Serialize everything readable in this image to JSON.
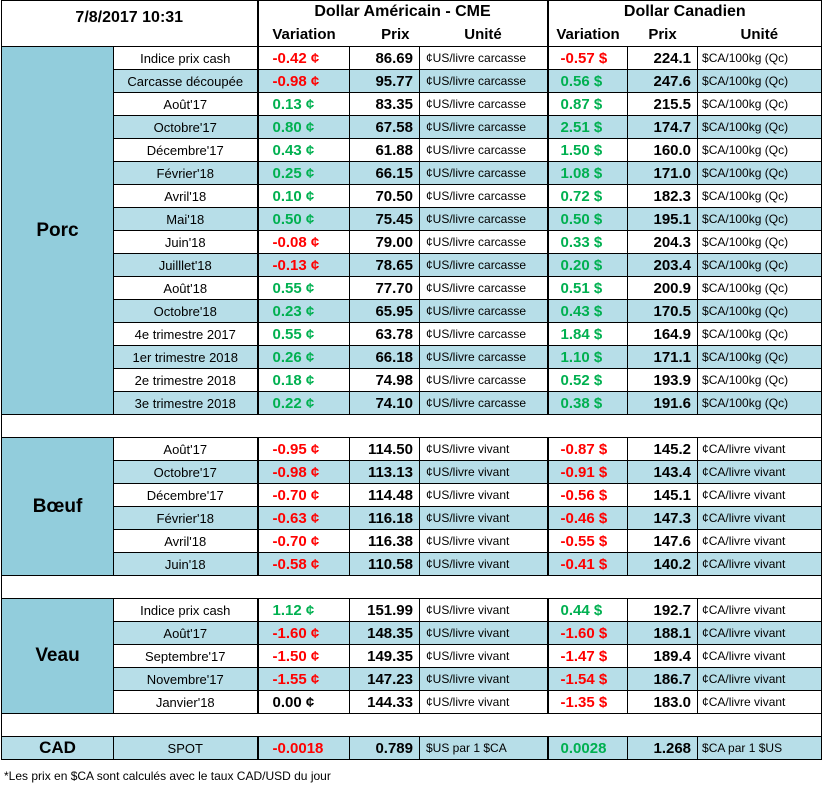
{
  "header": {
    "datetime": "7/8/2017 10:31",
    "usd_title": "Dollar Américain - CME",
    "cad_title": "Dollar Canadien",
    "col_variation": "Variation",
    "col_prix": "Prix",
    "col_unite": "Unité"
  },
  "colors": {
    "red": "#ff0000",
    "green": "#00b050",
    "light_blue": "#b7dee8",
    "group_blue": "#92cddc"
  },
  "porc": {
    "label": "Porc",
    "rows": [
      {
        "name": "Indice prix cash",
        "usd_var": "-0.42 ¢",
        "usd_var_color": "red",
        "usd_prix": "86.69",
        "usd_unit": "¢US/livre carcasse",
        "cad_var": "-0.57 $",
        "cad_var_color": "red",
        "cad_prix": "224.1",
        "cad_unit": "$CA/100kg (Qc)"
      },
      {
        "name": "Carcasse découpée",
        "usd_var": "-0.98 ¢",
        "usd_var_color": "red",
        "usd_prix": "95.77",
        "usd_unit": "¢US/livre carcasse",
        "cad_var": "0.56 $",
        "cad_var_color": "green",
        "cad_prix": "247.6",
        "cad_unit": "$CA/100kg (Qc)"
      },
      {
        "name": "Août'17",
        "usd_var": "0.13 ¢",
        "usd_var_color": "green",
        "usd_prix": "83.35",
        "usd_unit": "¢US/livre carcasse",
        "cad_var": "0.87 $",
        "cad_var_color": "green",
        "cad_prix": "215.5",
        "cad_unit": "$CA/100kg (Qc)"
      },
      {
        "name": "Octobre'17",
        "usd_var": "0.80 ¢",
        "usd_var_color": "green",
        "usd_prix": "67.58",
        "usd_unit": "¢US/livre carcasse",
        "cad_var": "2.51 $",
        "cad_var_color": "green",
        "cad_prix": "174.7",
        "cad_unit": "$CA/100kg (Qc)"
      },
      {
        "name": "Décembre'17",
        "usd_var": "0.43 ¢",
        "usd_var_color": "green",
        "usd_prix": "61.88",
        "usd_unit": "¢US/livre carcasse",
        "cad_var": "1.50 $",
        "cad_var_color": "green",
        "cad_prix": "160.0",
        "cad_unit": "$CA/100kg (Qc)"
      },
      {
        "name": "Février'18",
        "usd_var": "0.25 ¢",
        "usd_var_color": "green",
        "usd_prix": "66.15",
        "usd_unit": "¢US/livre carcasse",
        "cad_var": "1.08 $",
        "cad_var_color": "green",
        "cad_prix": "171.0",
        "cad_unit": "$CA/100kg (Qc)"
      },
      {
        "name": "Avril'18",
        "usd_var": "0.10 ¢",
        "usd_var_color": "green",
        "usd_prix": "70.50",
        "usd_unit": "¢US/livre carcasse",
        "cad_var": "0.72 $",
        "cad_var_color": "green",
        "cad_prix": "182.3",
        "cad_unit": "$CA/100kg (Qc)"
      },
      {
        "name": "Mai'18",
        "usd_var": "0.50 ¢",
        "usd_var_color": "green",
        "usd_prix": "75.45",
        "usd_unit": "¢US/livre carcasse",
        "cad_var": "0.50 $",
        "cad_var_color": "green",
        "cad_prix": "195.1",
        "cad_unit": "$CA/100kg (Qc)"
      },
      {
        "name": "Juin'18",
        "usd_var": "-0.08 ¢",
        "usd_var_color": "red",
        "usd_prix": "79.00",
        "usd_unit": "¢US/livre carcasse",
        "cad_var": "0.33 $",
        "cad_var_color": "green",
        "cad_prix": "204.3",
        "cad_unit": "$CA/100kg (Qc)"
      },
      {
        "name": "Juilllet'18",
        "usd_var": "-0.13 ¢",
        "usd_var_color": "red",
        "usd_prix": "78.65",
        "usd_unit": "¢US/livre carcasse",
        "cad_var": "0.20 $",
        "cad_var_color": "green",
        "cad_prix": "203.4",
        "cad_unit": "$CA/100kg (Qc)"
      },
      {
        "name": "Août'18",
        "usd_var": "0.55 ¢",
        "usd_var_color": "green",
        "usd_prix": "77.70",
        "usd_unit": "¢US/livre carcasse",
        "cad_var": "0.51 $",
        "cad_var_color": "green",
        "cad_prix": "200.9",
        "cad_unit": "$CA/100kg (Qc)"
      },
      {
        "name": "Octobre'18",
        "usd_var": "0.23 ¢",
        "usd_var_color": "green",
        "usd_prix": "65.95",
        "usd_unit": "¢US/livre carcasse",
        "cad_var": "0.43 $",
        "cad_var_color": "green",
        "cad_prix": "170.5",
        "cad_unit": "$CA/100kg (Qc)"
      },
      {
        "name": "4e trimestre 2017",
        "usd_var": "0.55 ¢",
        "usd_var_color": "green",
        "usd_prix": "63.78",
        "usd_unit": "¢US/livre carcasse",
        "cad_var": "1.84 $",
        "cad_var_color": "green",
        "cad_prix": "164.9",
        "cad_unit": "$CA/100kg (Qc)"
      },
      {
        "name": "1er trimestre 2018",
        "usd_var": "0.26 ¢",
        "usd_var_color": "green",
        "usd_prix": "66.18",
        "usd_unit": "¢US/livre carcasse",
        "cad_var": "1.10 $",
        "cad_var_color": "green",
        "cad_prix": "171.1",
        "cad_unit": "$CA/100kg (Qc)"
      },
      {
        "name": "2e trimestre 2018",
        "usd_var": "0.18 ¢",
        "usd_var_color": "green",
        "usd_prix": "74.98",
        "usd_unit": "¢US/livre carcasse",
        "cad_var": "0.52 $",
        "cad_var_color": "green",
        "cad_prix": "193.9",
        "cad_unit": "$CA/100kg (Qc)"
      },
      {
        "name": "3e trimestre 2018",
        "usd_var": "0.22 ¢",
        "usd_var_color": "green",
        "usd_prix": "74.10",
        "usd_unit": "¢US/livre carcasse",
        "cad_var": "0.38 $",
        "cad_var_color": "green",
        "cad_prix": "191.6",
        "cad_unit": "$CA/100kg (Qc)"
      }
    ]
  },
  "boeuf": {
    "label": "Bœuf",
    "rows": [
      {
        "name": "Août'17",
        "usd_var": "-0.95 ¢",
        "usd_var_color": "red",
        "usd_prix": "114.50",
        "usd_unit": "¢US/livre vivant",
        "cad_var": "-0.87 $",
        "cad_var_color": "red",
        "cad_prix": "145.2",
        "cad_unit": "¢CA/livre vivant"
      },
      {
        "name": "Octobre'17",
        "usd_var": "-0.98 ¢",
        "usd_var_color": "red",
        "usd_prix": "113.13",
        "usd_unit": "¢US/livre vivant",
        "cad_var": "-0.91 $",
        "cad_var_color": "red",
        "cad_prix": "143.4",
        "cad_unit": "¢CA/livre vivant"
      },
      {
        "name": "Décembre'17",
        "usd_var": "-0.70 ¢",
        "usd_var_color": "red",
        "usd_prix": "114.48",
        "usd_unit": "¢US/livre vivant",
        "cad_var": "-0.56 $",
        "cad_var_color": "red",
        "cad_prix": "145.1",
        "cad_unit": "¢CA/livre vivant"
      },
      {
        "name": "Février'18",
        "usd_var": "-0.63 ¢",
        "usd_var_color": "red",
        "usd_prix": "116.18",
        "usd_unit": "¢US/livre vivant",
        "cad_var": "-0.46 $",
        "cad_var_color": "red",
        "cad_prix": "147.3",
        "cad_unit": "¢CA/livre vivant"
      },
      {
        "name": "Avril'18",
        "usd_var": "-0.70 ¢",
        "usd_var_color": "red",
        "usd_prix": "116.38",
        "usd_unit": "¢US/livre vivant",
        "cad_var": "-0.55 $",
        "cad_var_color": "red",
        "cad_prix": "147.6",
        "cad_unit": "¢CA/livre vivant"
      },
      {
        "name": "Juin'18",
        "usd_var": "-0.58 ¢",
        "usd_var_color": "red",
        "usd_prix": "110.58",
        "usd_unit": "¢US/livre vivant",
        "cad_var": "-0.41 $",
        "cad_var_color": "red",
        "cad_prix": "140.2",
        "cad_unit": "¢CA/livre vivant"
      }
    ]
  },
  "veau": {
    "label": "Veau",
    "rows": [
      {
        "name": "Indice prix cash",
        "usd_var": "1.12 ¢",
        "usd_var_color": "green",
        "usd_prix": "151.99",
        "usd_unit": "¢US/livre vivant",
        "cad_var": "0.44 $",
        "cad_var_color": "green",
        "cad_prix": "192.7",
        "cad_unit": "¢CA/livre vivant"
      },
      {
        "name": "Août'17",
        "usd_var": "-1.60 ¢",
        "usd_var_color": "red",
        "usd_prix": "148.35",
        "usd_unit": "¢US/livre vivant",
        "cad_var": "-1.60 $",
        "cad_var_color": "red",
        "cad_prix": "188.1",
        "cad_unit": "¢CA/livre vivant"
      },
      {
        "name": "Septembre'17",
        "usd_var": "-1.50 ¢",
        "usd_var_color": "red",
        "usd_prix": "149.35",
        "usd_unit": "¢US/livre vivant",
        "cad_var": "-1.47 $",
        "cad_var_color": "red",
        "cad_prix": "189.4",
        "cad_unit": "¢CA/livre vivant"
      },
      {
        "name": "Novembre'17",
        "usd_var": "-1.55 ¢",
        "usd_var_color": "red",
        "usd_prix": "147.23",
        "usd_unit": "¢US/livre vivant",
        "cad_var": "-1.54 $",
        "cad_var_color": "red",
        "cad_prix": "186.7",
        "cad_unit": "¢CA/livre vivant"
      },
      {
        "name": "Janvier'18",
        "usd_var": "0.00 ¢",
        "usd_var_color": "black",
        "usd_prix": "144.33",
        "usd_unit": "¢US/livre vivant",
        "cad_var": "-1.35 $",
        "cad_var_color": "red",
        "cad_prix": "183.0",
        "cad_unit": "¢CA/livre vivant"
      }
    ]
  },
  "cad": {
    "label": "CAD",
    "name": "SPOT",
    "usd_var": "-0.0018",
    "usd_var_color": "red",
    "usd_prix": "0.789",
    "usd_unit": "$US par 1 $CA",
    "cad_var": "0.0028",
    "cad_var_color": "green",
    "cad_prix": "1.268",
    "cad_unit": "$CA par 1 $US"
  },
  "footnote": "*Les  prix en $CA sont calculés avec le taux CAD/USD du jour"
}
